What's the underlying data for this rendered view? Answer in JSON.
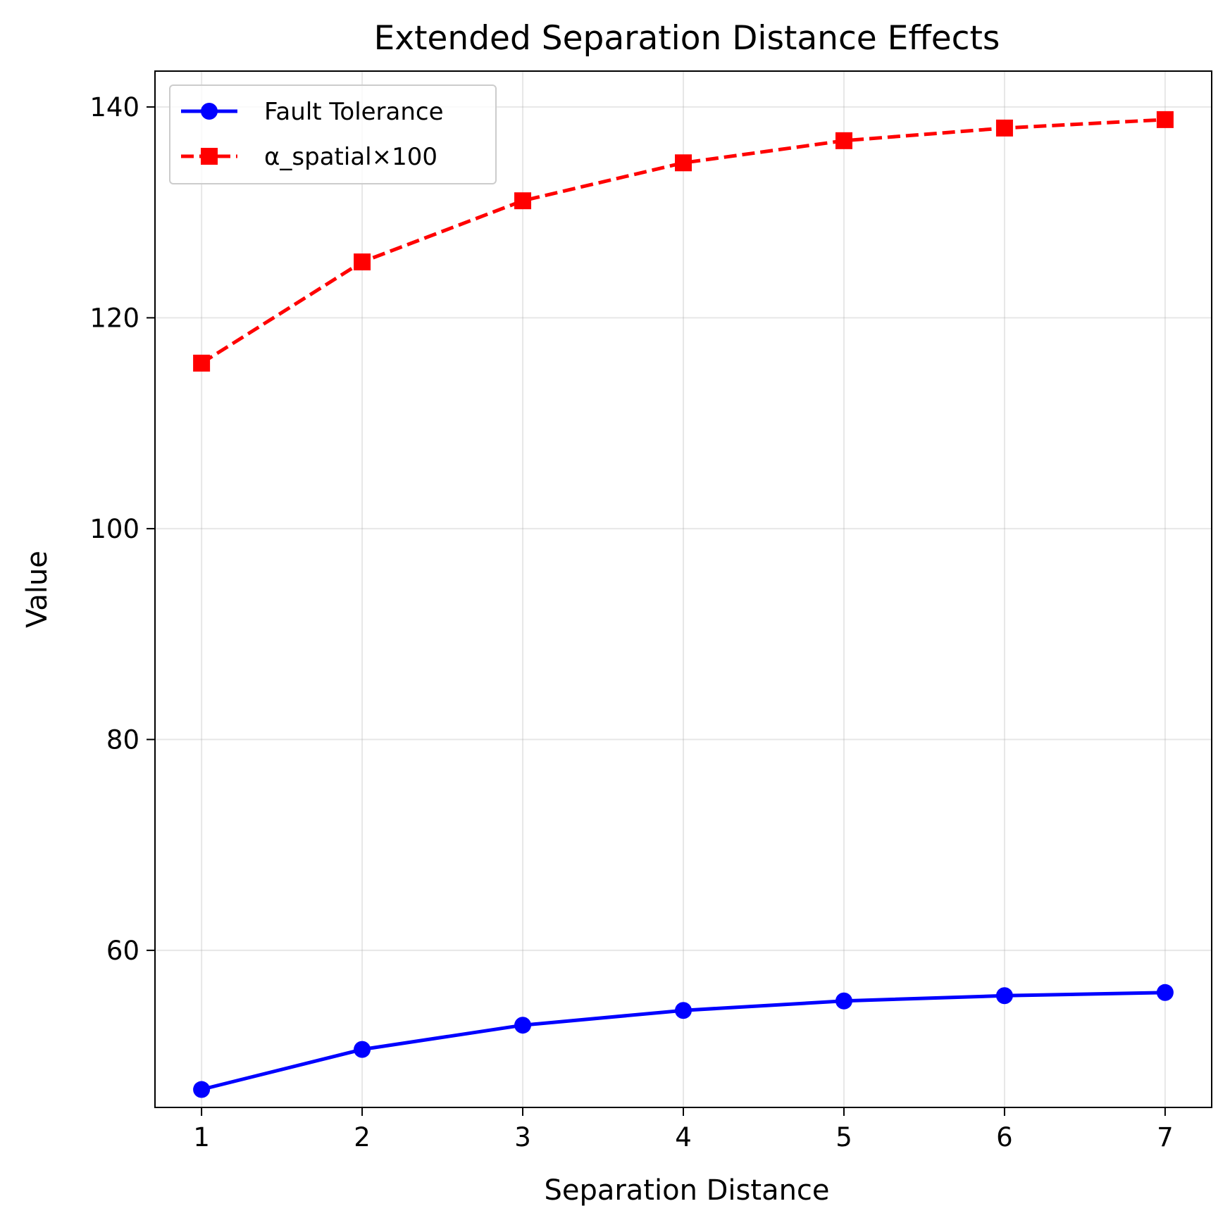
{
  "chart_data": {
    "type": "line",
    "title": "Extended Separation Distance Effects",
    "xlabel": "Separation Distance",
    "ylabel": "Value",
    "x": [
      1,
      2,
      3,
      4,
      5,
      6,
      7
    ],
    "xlim": [
      0.71,
      7.29
    ],
    "ylim": [
      45.1,
      143.4
    ],
    "xticks": [
      "1",
      "2",
      "3",
      "4",
      "5",
      "6",
      "7"
    ],
    "yticks": [
      "60",
      "80",
      "100",
      "120",
      "140"
    ],
    "grid": true,
    "legend_position": "upper-left",
    "series": [
      {
        "name": "Fault Tolerance",
        "values": [
          46.8,
          50.6,
          52.9,
          54.3,
          55.2,
          55.7,
          56.0
        ],
        "color": "#0000ff",
        "line_style": "solid",
        "marker": "circle"
      },
      {
        "name": "α_spatial×100",
        "values": [
          115.7,
          125.3,
          131.1,
          134.7,
          136.8,
          138.0,
          138.8
        ],
        "color": "#ff0000",
        "line_style": "dashed",
        "marker": "square"
      }
    ]
  }
}
